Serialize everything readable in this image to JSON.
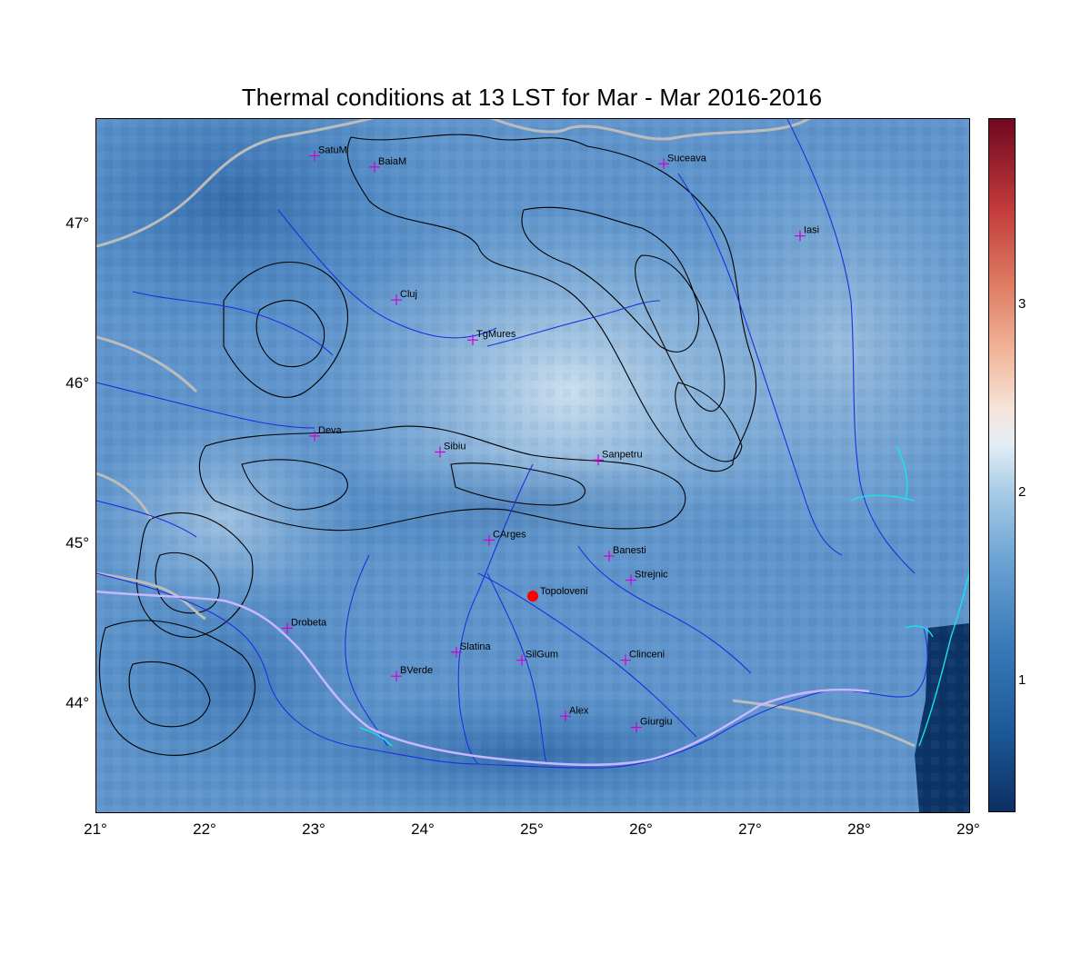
{
  "title": "Thermal conditions at 13 LST for Mar - Mar  2016-2016",
  "axes": {
    "lon_ticks": [
      "21°",
      "22°",
      "23°",
      "24°",
      "25°",
      "26°",
      "27°",
      "28°",
      "29°"
    ],
    "lat_ticks": [
      "47°",
      "46°",
      "45°",
      "44°"
    ]
  },
  "colorbar": {
    "ticks": [
      "3",
      "2",
      "1"
    ],
    "colors": [
      "#0d2f63",
      "#3a7ab9",
      "#e3eef5",
      "#de7c63",
      "#6f0821"
    ]
  },
  "cities": [
    {
      "name": "SatuM",
      "lon": 23.0,
      "lat": 47.45
    },
    {
      "name": "BaiaM",
      "lon": 23.55,
      "lat": 47.38
    },
    {
      "name": "Suceava",
      "lon": 26.2,
      "lat": 47.4
    },
    {
      "name": "Iasi",
      "lon": 27.45,
      "lat": 46.95
    },
    {
      "name": "Cluj",
      "lon": 23.75,
      "lat": 46.55
    },
    {
      "name": "TgMures",
      "lon": 24.45,
      "lat": 46.3
    },
    {
      "name": "Deva",
      "lon": 23.0,
      "lat": 45.7
    },
    {
      "name": "Sibiu",
      "lon": 24.15,
      "lat": 45.6
    },
    {
      "name": "Sanpetru",
      "lon": 25.6,
      "lat": 45.55
    },
    {
      "name": "CArges",
      "lon": 24.6,
      "lat": 45.05
    },
    {
      "name": "Banesti",
      "lon": 25.7,
      "lat": 44.95
    },
    {
      "name": "Strejnic",
      "lon": 25.9,
      "lat": 44.8
    },
    {
      "name": "Drobeta",
      "lon": 22.75,
      "lat": 44.5
    },
    {
      "name": "Slatina",
      "lon": 24.3,
      "lat": 44.35
    },
    {
      "name": "SilGum",
      "lon": 24.9,
      "lat": 44.3
    },
    {
      "name": "Clinceni",
      "lon": 25.85,
      "lat": 44.3
    },
    {
      "name": "BVerde",
      "lon": 23.75,
      "lat": 44.2
    },
    {
      "name": "Alex",
      "lon": 25.3,
      "lat": 43.95
    },
    {
      "name": "Giurgiu",
      "lon": 25.95,
      "lat": 43.88
    }
  ],
  "station": {
    "name": "Topoloveni",
    "lon": 25.0,
    "lat": 44.7,
    "color": "#ff0000"
  },
  "colors": {
    "rivers": "#1c2fe0",
    "borders": "#bcbcbc",
    "contours": "#000000",
    "lakes": "#16e4f0",
    "city_marker": "#d200d2"
  }
}
